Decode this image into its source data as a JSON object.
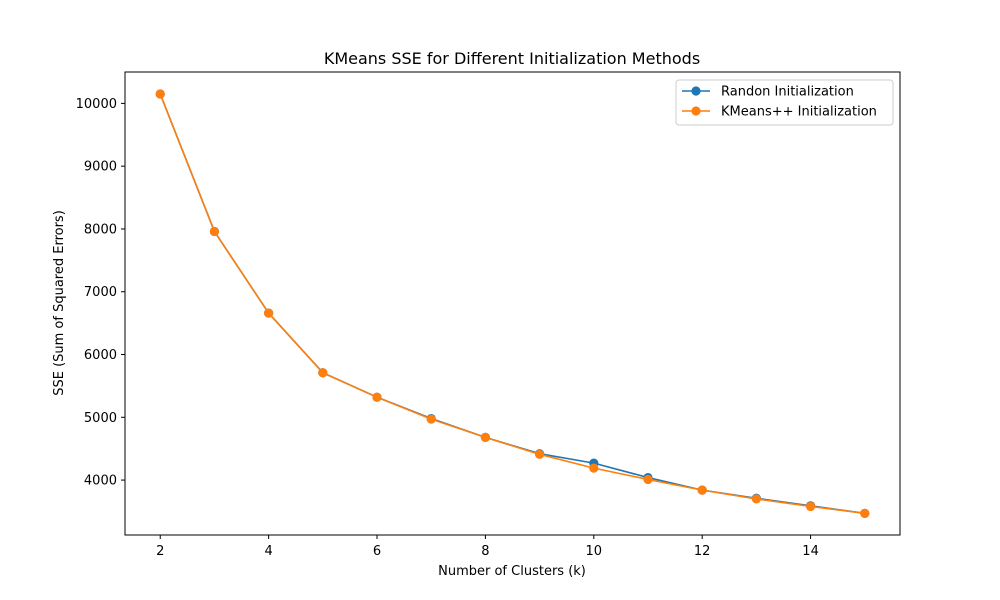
{
  "chart_data": {
    "type": "line",
    "title": "KMeans SSE for Different Initialization Methods",
    "xlabel": "Number of Clusters (k)",
    "ylabel": "SSE (Sum of Squared Errors)",
    "x": [
      2,
      3,
      4,
      5,
      6,
      7,
      8,
      9,
      10,
      11,
      12,
      13,
      14,
      15
    ],
    "xlim": [
      1.35,
      15.65
    ],
    "ylim": [
      3125,
      10500
    ],
    "xticks": [
      2,
      4,
      6,
      8,
      10,
      12,
      14
    ],
    "xtick_labels": [
      "2",
      "4",
      "6",
      "8",
      "10",
      "12",
      "14"
    ],
    "yticks": [
      4000,
      5000,
      6000,
      7000,
      8000,
      9000,
      10000
    ],
    "ytick_labels": [
      "4000",
      "5000",
      "6000",
      "7000",
      "8000",
      "9000",
      "10000"
    ],
    "grid": false,
    "legend_position": "top-right",
    "series": [
      {
        "name": "Randon Initialization",
        "color": "#1f77b4",
        "marker": "circle",
        "values": [
          10150,
          7960,
          6660,
          5710,
          5320,
          4980,
          4680,
          4420,
          4270,
          4040,
          3840,
          3710,
          3590,
          3470
        ]
      },
      {
        "name": "KMeans++ Initialization",
        "color": "#ff7f0e",
        "marker": "circle",
        "values": [
          10150,
          7960,
          6660,
          5710,
          5320,
          4970,
          4680,
          4410,
          4190,
          4010,
          3840,
          3700,
          3580,
          3470
        ]
      }
    ]
  }
}
